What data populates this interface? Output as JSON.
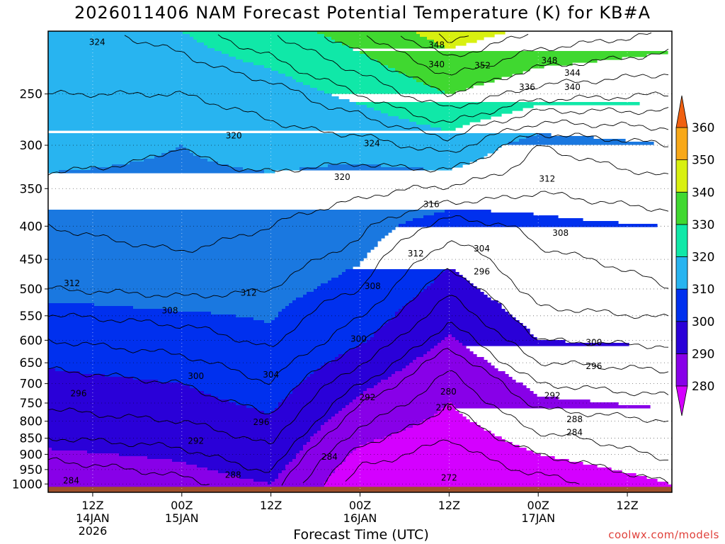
{
  "title": "2026011406 NAM Forecast Potential Temperature (K) for KB#A",
  "xlabel": "Forecast Time (UTC)",
  "credit": "coolwx.com/models",
  "chart_data": {
    "type": "heatmap",
    "title": "2026011406 NAM Forecast Potential Temperature (K) for KB#A",
    "xlabel": "Forecast Time (UTC)",
    "ylabel": "",
    "x_ticks": [
      {
        "label": "12Z",
        "sub": [
          "14JAN",
          "2026"
        ],
        "hour": 6
      },
      {
        "label": "00Z",
        "sub": [
          "15JAN"
        ],
        "hour": 18
      },
      {
        "label": "12Z",
        "sub": [],
        "hour": 30
      },
      {
        "label": "00Z",
        "sub": [
          "16JAN"
        ],
        "hour": 42
      },
      {
        "label": "12Z",
        "sub": [],
        "hour": 54
      },
      {
        "label": "00Z",
        "sub": [
          "17JAN"
        ],
        "hour": 66
      },
      {
        "label": "12Z",
        "sub": [],
        "hour": 78
      }
    ],
    "y_ticks": [
      250,
      300,
      350,
      400,
      450,
      500,
      550,
      600,
      650,
      700,
      750,
      800,
      850,
      900,
      950,
      1000
    ],
    "colorbar": {
      "levels": [
        280,
        290,
        300,
        310,
        320,
        330,
        340,
        350,
        360
      ],
      "colors": [
        "#d400ff",
        "#8800e8",
        "#2a00d8",
        "#0030ee",
        "#1a78e0",
        "#28b4f0",
        "#10e8a8",
        "#40d830",
        "#d8f010",
        "#f8a818",
        "#f06010"
      ],
      "extend": "both"
    },
    "terrain_color": "#a0502a",
    "profiles": [
      {
        "hour": 0,
        "theta_by_level": {
          "1000": 284,
          "900": 289,
          "800": 295,
          "700": 298,
          "600": 304,
          "500": 312,
          "400": 316,
          "300": 322,
          "250": 324,
          "200": 326
        }
      },
      {
        "hour": 18,
        "theta_by_level": {
          "1000": 287,
          "900": 291,
          "800": 296,
          "700": 300,
          "600": 306,
          "500": 313,
          "400": 318,
          "300": 320,
          "250": 324,
          "200": 330
        }
      },
      {
        "hour": 30,
        "theta_by_level": {
          "1000": 290,
          "900": 295,
          "800": 299,
          "700": 304,
          "600": 309,
          "500": 312,
          "400": 316,
          "300": 322,
          "250": 326,
          "200": 336
        }
      },
      {
        "hour": 42,
        "theta_by_level": {
          "1000": 273,
          "900": 278,
          "800": 285,
          "700": 292,
          "600": 301,
          "500": 308,
          "400": 313,
          "300": 322,
          "250": 332,
          "200": 344
        }
      },
      {
        "hour": 54,
        "theta_by_level": {
          "1000": 272,
          "900": 274,
          "800": 278,
          "700": 282,
          "600": 289,
          "500": 297,
          "400": 306,
          "300": 326,
          "250": 340,
          "200": 354
        }
      },
      {
        "hour": 66,
        "theta_by_level": {
          "1000": 274,
          "900": 280,
          "800": 286,
          "700": 292,
          "600": 300,
          "500": 306,
          "400": 309,
          "300": 316,
          "250": 334,
          "200": 348
        }
      },
      {
        "hour": 84,
        "theta_by_level": {
          "1000": 280,
          "900": 285,
          "800": 288,
          "700": 294,
          "600": 301,
          "500": 308,
          "400": 310,
          "300": 320,
          "250": 332,
          "200": 344
        }
      }
    ],
    "contour_labels": [
      {
        "text": "324",
        "hour": 6.6,
        "p": 208
      },
      {
        "text": "348",
        "hour": 52.3,
        "p": 210
      },
      {
        "text": "340",
        "hour": 52.3,
        "p": 225
      },
      {
        "text": "352",
        "hour": 58.5,
        "p": 226
      },
      {
        "text": "348",
        "hour": 67.5,
        "p": 222
      },
      {
        "text": "344",
        "hour": 70.6,
        "p": 232
      },
      {
        "text": "336",
        "hour": 64.5,
        "p": 244
      },
      {
        "text": "340",
        "hour": 70.6,
        "p": 244
      },
      {
        "text": "320",
        "hour": 25.0,
        "p": 290
      },
      {
        "text": "324",
        "hour": 43.6,
        "p": 298
      },
      {
        "text": "320",
        "hour": 39.6,
        "p": 336
      },
      {
        "text": "312",
        "hour": 67.2,
        "p": 338
      },
      {
        "text": "316",
        "hour": 51.6,
        "p": 370
      },
      {
        "text": "308",
        "hour": 69.0,
        "p": 410
      },
      {
        "text": "304",
        "hour": 58.4,
        "p": 433
      },
      {
        "text": "312",
        "hour": 49.5,
        "p": 441
      },
      {
        "text": "296",
        "hour": 58.4,
        "p": 470
      },
      {
        "text": "312",
        "hour": 3.2,
        "p": 490
      },
      {
        "text": "308",
        "hour": 43.7,
        "p": 495
      },
      {
        "text": "312",
        "hour": 27.0,
        "p": 507
      },
      {
        "text": "308",
        "hour": 16.4,
        "p": 540
      },
      {
        "text": "300",
        "hour": 41.8,
        "p": 597
      },
      {
        "text": "300",
        "hour": 73.5,
        "p": 605
      },
      {
        "text": "296",
        "hour": 73.5,
        "p": 658
      },
      {
        "text": "300",
        "hour": 19.9,
        "p": 682
      },
      {
        "text": "304",
        "hour": 30.0,
        "p": 678
      },
      {
        "text": "296",
        "hour": 4.1,
        "p": 725
      },
      {
        "text": "292",
        "hour": 43.0,
        "p": 735
      },
      {
        "text": "280",
        "hour": 53.9,
        "p": 720
      },
      {
        "text": "292",
        "hour": 67.9,
        "p": 730
      },
      {
        "text": "276",
        "hour": 53.3,
        "p": 762
      },
      {
        "text": "288",
        "hour": 70.9,
        "p": 795
      },
      {
        "text": "296",
        "hour": 28.7,
        "p": 803
      },
      {
        "text": "284",
        "hour": 70.9,
        "p": 833
      },
      {
        "text": "292",
        "hour": 19.9,
        "p": 858
      },
      {
        "text": "284",
        "hour": 37.9,
        "p": 908
      },
      {
        "text": "288",
        "hour": 24.9,
        "p": 968
      },
      {
        "text": "284",
        "hour": 3.1,
        "p": 988
      },
      {
        "text": "272",
        "hour": 54.0,
        "p": 978
      }
    ]
  }
}
